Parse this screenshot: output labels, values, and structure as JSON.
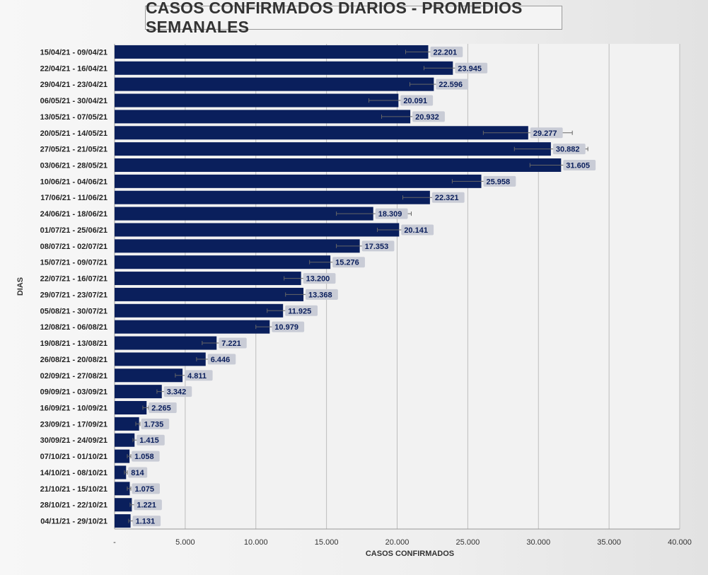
{
  "chart_data": {
    "type": "bar",
    "orientation": "horizontal",
    "title": "CASOS CONFIRMADOS DIARIOS - PROMEDIOS SEMANALES",
    "xlabel": "CASOS CONFIRMADOS",
    "ylabel": "DIAS",
    "xlim": [
      0,
      40000
    ],
    "x_ticks": [
      0,
      5000,
      10000,
      15000,
      20000,
      25000,
      30000,
      35000,
      40000
    ],
    "x_tick_labels": [
      "-",
      "5.000",
      "10.000",
      "15.000",
      "20.000",
      "25.000",
      "30.000",
      "35.000",
      "40.000"
    ],
    "grid": "vertical",
    "bar_color": "#0a1f5c",
    "categories": [
      "15/04/21 - 09/04/21",
      "22/04/21 - 16/04/21",
      "29/04/21 - 23/04/21",
      "06/05/21 - 30/04/21",
      "13/05/21 - 07/05/21",
      "20/05/21 - 14/05/21",
      "27/05/21 - 21/05/21",
      "03/06/21 - 28/05/21",
      "10/06/21 - 04/06/21",
      "17/06/21 - 11/06/21",
      "24/06/21 - 18/06/21",
      "01/07/21 - 25/06/21",
      "08/07/21 - 02/07/21",
      "15/07/21 - 09/07/21",
      "22/07/21 - 16/07/21",
      "29/07/21 - 23/07/21",
      "05/08/21 - 30/07/21",
      "12/08/21 - 06/08/21",
      "19/08/21 - 13/08/21",
      "26/08/21 - 20/08/21",
      "02/09/21 - 27/08/21",
      "09/09/21 - 03/09/21",
      "16/09/21 - 10/09/21",
      "23/09/21 - 17/09/21",
      "30/09/21 - 24/09/21",
      "07/10/21 - 01/10/21",
      "14/10/21 - 08/10/21",
      "21/10/21 - 15/10/21",
      "28/10/21 - 22/10/21",
      "04/11/21 - 29/10/21"
    ],
    "values": [
      22201,
      23945,
      22596,
      20091,
      20932,
      29277,
      30882,
      31605,
      25958,
      22321,
      18309,
      20141,
      17353,
      15276,
      13200,
      13368,
      11925,
      10979,
      7221,
      6446,
      4811,
      3342,
      2265,
      1735,
      1415,
      1058,
      814,
      1075,
      1221,
      1131
    ],
    "value_labels": [
      "22.201",
      "23.945",
      "22.596",
      "20.091",
      "20.932",
      "29.277",
      "30.882",
      "31.605",
      "25.958",
      "22.321",
      "18.309",
      "20.141",
      "17.353",
      "15.276",
      "13.200",
      "13.368",
      "11.925",
      "10.979",
      "7.221",
      "6.446",
      "4.811",
      "3.342",
      "2.265",
      "1.735",
      "1.415",
      "1.058",
      "814",
      "1.075",
      "1.221",
      "1.131"
    ],
    "error_bars": [
      [
        20600,
        23400
      ],
      [
        21900,
        25000
      ],
      [
        20900,
        22800
      ],
      [
        18000,
        21600
      ],
      [
        18900,
        21400
      ],
      [
        26100,
        32400
      ],
      [
        28300,
        33500
      ],
      [
        29400,
        33800
      ],
      [
        23900,
        27500
      ],
      [
        20400,
        23200
      ],
      [
        15700,
        21000
      ],
      [
        18600,
        20700
      ],
      [
        15700,
        18200
      ],
      [
        13800,
        16000
      ],
      [
        12000,
        13600
      ],
      [
        12100,
        13900
      ],
      [
        10800,
        12400
      ],
      [
        10000,
        11500
      ],
      [
        6200,
        7600
      ],
      [
        5800,
        6800
      ],
      [
        4300,
        5100
      ],
      [
        3000,
        3600
      ],
      [
        2000,
        2400
      ],
      [
        1500,
        1800
      ],
      [
        1300,
        1600
      ],
      [
        900,
        1150
      ],
      [
        700,
        900
      ],
      [
        900,
        1150
      ],
      [
        1100,
        1400
      ],
      [
        1000,
        1300
      ]
    ]
  }
}
